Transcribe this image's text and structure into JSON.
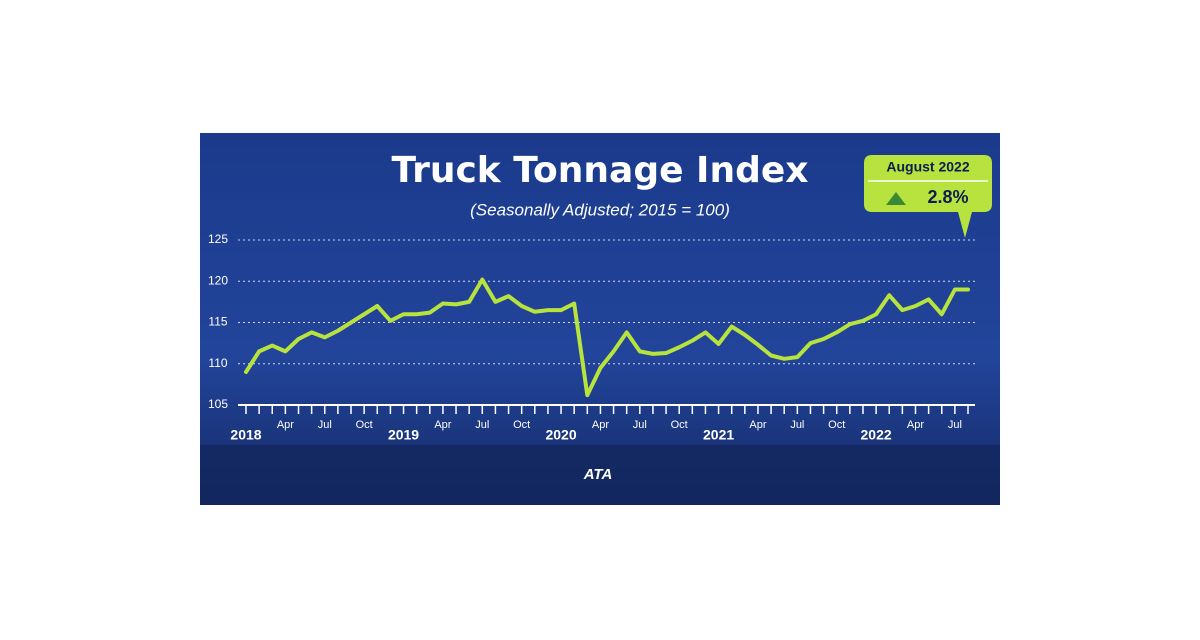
{
  "chart_data": {
    "type": "line",
    "title": "Truck Tonnage Index",
    "subtitle": "(Seasonally Adjusted; 2015 = 100)",
    "categories": [
      "2018",
      null,
      null,
      "Apr",
      null,
      null,
      "Jul",
      null,
      null,
      "Oct",
      null,
      null,
      "2019",
      null,
      null,
      "Apr",
      null,
      null,
      "Jul",
      null,
      null,
      "Oct",
      null,
      null,
      "2020",
      null,
      null,
      "Apr",
      null,
      null,
      "Jul",
      null,
      null,
      "Oct",
      null,
      null,
      "2021",
      null,
      null,
      "Apr",
      null,
      null,
      "Jul",
      null,
      null,
      "Oct",
      null,
      null,
      "2022",
      null,
      null,
      "Apr",
      null,
      null,
      "Jul",
      null
    ],
    "series": [
      {
        "name": "Truck Tonnage Index",
        "color": "#b8e23d",
        "values": [
          109,
          111.5,
          112.2,
          111.5,
          113,
          113.8,
          113.2,
          114,
          115,
          116,
          117,
          115.2,
          116,
          116,
          116.2,
          117.3,
          117.2,
          117.5,
          120.2,
          117.5,
          118.2,
          117,
          116.3,
          116.5,
          116.5,
          117.3,
          106.2,
          109.5,
          111.5,
          113.8,
          111.5,
          111.2,
          111.3,
          112,
          112.8,
          113.8,
          112.4,
          114.5,
          113.5,
          112.3,
          111,
          110.6,
          110.8,
          112.5,
          113,
          113.8,
          114.8,
          115.2,
          116,
          118.3,
          116.5,
          117,
          117.8,
          116,
          119,
          119
        ]
      }
    ],
    "ylim": [
      105,
      125
    ],
    "yticks": [
      105,
      110,
      115,
      120,
      125
    ],
    "grid": true,
    "annotation": {
      "label": "August 2022",
      "text": "2.8%"
    },
    "logo": "ATA"
  }
}
